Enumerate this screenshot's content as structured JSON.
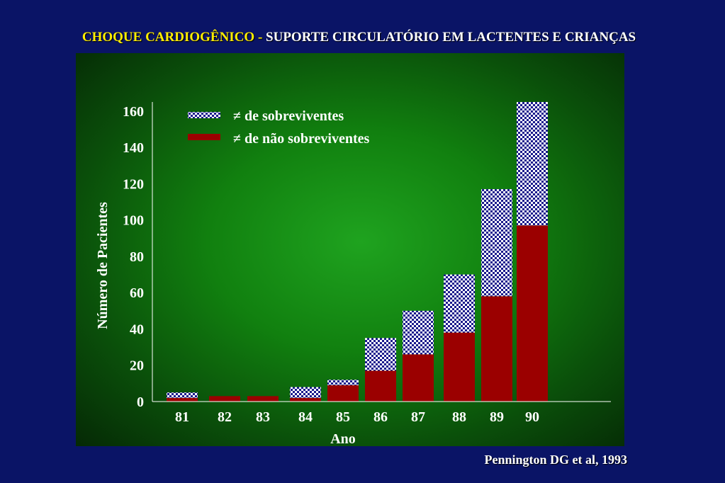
{
  "title": {
    "part1": "CHOQUE CARDIOGÊNICO - ",
    "part2": "SUPORTE CIRCULATÓRIO EM LACTENTES E CRIANÇAS"
  },
  "citation": "Pennington DG et al, 1993",
  "colors": {
    "background": "#0a1466",
    "title_highlight": "#ffee00",
    "non_survivors": "#9b0000",
    "survivors_pattern": "#1a1a8c"
  },
  "chart_data": {
    "type": "bar",
    "stacked": true,
    "categories": [
      "81",
      "82",
      "83",
      "84",
      "85",
      "86",
      "87",
      "88",
      "89",
      "90"
    ],
    "series": [
      {
        "name": "≠  de não sobreviventes",
        "values": [
          2,
          3,
          3,
          2,
          9,
          17,
          26,
          38,
          58,
          97
        ]
      },
      {
        "name": "≠  de sobreviventes",
        "values": [
          3,
          0,
          0,
          6,
          3,
          18,
          24,
          32,
          59,
          68
        ]
      }
    ],
    "xlabel": "Ano",
    "ylabel": "Número de Pacientes",
    "ylim": [
      0,
      165
    ],
    "yticks": [
      0,
      20,
      40,
      60,
      80,
      100,
      120,
      140,
      160
    ],
    "grid": false,
    "legend_position": "top-left"
  }
}
